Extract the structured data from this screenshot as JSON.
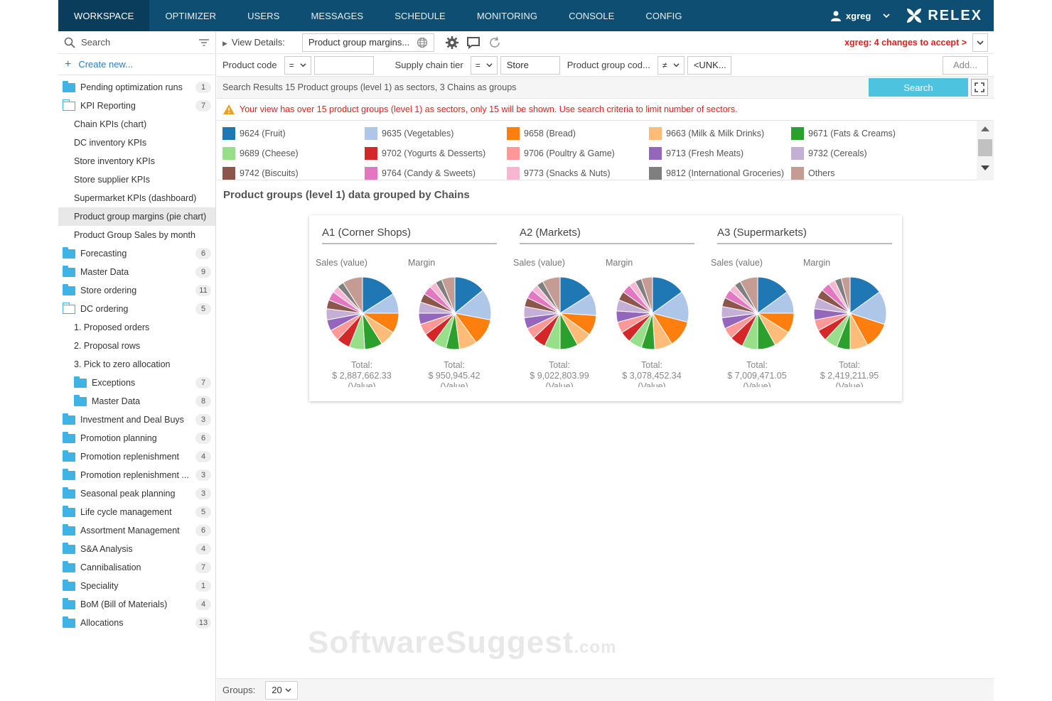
{
  "nav": {
    "tabs": [
      "WORKSPACE",
      "OPTIMIZER",
      "USERS",
      "MESSAGES",
      "SCHEDULE",
      "MONITORING",
      "CONSOLE",
      "CONFIG"
    ],
    "user": "xgreg",
    "logo": "RELEX"
  },
  "sidebar": {
    "search_label": "Search",
    "create_label": "Create new...",
    "items": [
      {
        "label": "Pending optimization runs",
        "count": "1",
        "icon": "folder",
        "level": 0
      },
      {
        "label": "KPI Reporting",
        "count": "7",
        "icon": "folder-open",
        "level": 0
      },
      {
        "label": "Chain KPIs (chart)",
        "count": "",
        "icon": "",
        "level": 1
      },
      {
        "label": "DC inventory KPIs",
        "count": "",
        "icon": "",
        "level": 1
      },
      {
        "label": "Store inventory KPIs",
        "count": "",
        "icon": "",
        "level": 1
      },
      {
        "label": "Store supplier KPIs",
        "count": "",
        "icon": "",
        "level": 1
      },
      {
        "label": "Supermarket KPIs (dashboard)",
        "count": "",
        "icon": "",
        "level": 1
      },
      {
        "label": "Product group margins (pie chart)",
        "count": "",
        "icon": "",
        "level": 1,
        "selected": true
      },
      {
        "label": "Product Group Sales by month",
        "count": "",
        "icon": "",
        "level": 1
      },
      {
        "label": "Forecasting",
        "count": "6",
        "icon": "folder",
        "level": 0
      },
      {
        "label": "Master Data",
        "count": "9",
        "icon": "folder",
        "level": 0
      },
      {
        "label": "Store ordering",
        "count": "11",
        "icon": "folder",
        "level": 0
      },
      {
        "label": "DC ordering",
        "count": "5",
        "icon": "folder-open",
        "level": 0
      },
      {
        "label": "1. Proposed orders",
        "count": "",
        "icon": "",
        "level": 1
      },
      {
        "label": "2. Proposal rows",
        "count": "",
        "icon": "",
        "level": 1
      },
      {
        "label": "3. Pick to zero allocation",
        "count": "",
        "icon": "",
        "level": 1
      },
      {
        "label": "Exceptions",
        "count": "7",
        "icon": "folder",
        "level": 1
      },
      {
        "label": "Master Data",
        "count": "8",
        "icon": "folder",
        "level": 1
      },
      {
        "label": "Investment and Deal Buys",
        "count": "3",
        "icon": "folder",
        "level": 0
      },
      {
        "label": "Promotion planning",
        "count": "6",
        "icon": "folder",
        "level": 0
      },
      {
        "label": "Promotion replenishment",
        "count": "4",
        "icon": "folder",
        "level": 0
      },
      {
        "label": "Promotion replenishment ...",
        "count": "3",
        "icon": "folder",
        "level": 0
      },
      {
        "label": "Seasonal peak planning",
        "count": "3",
        "icon": "folder",
        "level": 0
      },
      {
        "label": "Life cycle management",
        "count": "5",
        "icon": "folder",
        "level": 0
      },
      {
        "label": "Assortment Management",
        "count": "6",
        "icon": "folder",
        "level": 0
      },
      {
        "label": "S&A Analysis",
        "count": "4",
        "icon": "folder",
        "level": 0
      },
      {
        "label": "Cannibalisation",
        "count": "7",
        "icon": "folder",
        "level": 0
      },
      {
        "label": "Speciality",
        "count": "1",
        "icon": "folder",
        "level": 0
      },
      {
        "label": "BoM (Bill of Materials)",
        "count": "4",
        "icon": "folder",
        "level": 0
      },
      {
        "label": "Allocations",
        "count": "13",
        "icon": "folder",
        "level": 0
      }
    ]
  },
  "toolbar": {
    "view_details_label": "View Details:",
    "view_value": "Product group margins...",
    "changes_text": "xgreg: 4 changes to accept >"
  },
  "filters": {
    "product_code_label": "Product code",
    "product_code_op": "=",
    "product_code_value": "",
    "supply_chain_label": "Supply chain tier",
    "supply_chain_op": "=",
    "supply_chain_value": "Store",
    "product_group_label": "Product group cod...",
    "product_group_op": "≠",
    "product_group_value": "<UNK...",
    "add_label": "Add..."
  },
  "results": {
    "text": "Search Results  15 Product groups (level 1) as sectors, 3 Chains as groups",
    "search_button": "Search"
  },
  "warning": "Your view has over 15 product groups (level 1) as sectors, only 15 will be shown. Use search criteria to limit number of sectors.",
  "legend": [
    {
      "label": "9624 (Fruit)",
      "color": "#1f77b4"
    },
    {
      "label": "9635 (Vegetables)",
      "color": "#aec7e8"
    },
    {
      "label": "9658 (Bread)",
      "color": "#ff7f0e"
    },
    {
      "label": "9663 (Milk & Milk Drinks)",
      "color": "#ffbb78"
    },
    {
      "label": "9671 (Fats & Creams)",
      "color": "#2ca02c"
    },
    {
      "label": "9689 (Cheese)",
      "color": "#98df8a"
    },
    {
      "label": "9702 (Yogurts & Desserts)",
      "color": "#d62728"
    },
    {
      "label": "9706 (Poultry & Game)",
      "color": "#ff9896"
    },
    {
      "label": "9713 (Fresh Meats)",
      "color": "#9467bd"
    },
    {
      "label": "9732 (Cereals)",
      "color": "#c5b0d5"
    },
    {
      "label": "9742 (Biscuits)",
      "color": "#8c564b"
    },
    {
      "label": "9764 (Candy & Sweets)",
      "color": "#e377c2"
    },
    {
      "label": "9773 (Snacks & Nuts)",
      "color": "#f7b6d2"
    },
    {
      "label": "9812 (International Groceries)",
      "color": "#7f7f7f"
    },
    {
      "label": "Others",
      "color": "#c49c94"
    }
  ],
  "section_title": "Product groups (level 1) data grouped by Chains",
  "chart_data": {
    "type": "pie",
    "groups": [
      {
        "title": "A1 (Corner Shops)",
        "pies": [
          {
            "label": "Sales (value)",
            "total_label": "Total:",
            "total": "$ 2,887,662.33",
            "unit": "(Value)",
            "values": [
              16,
              9,
              9,
              7,
              8,
              7,
              6,
              5,
              5,
              5,
              4,
              4,
              3,
              3,
              9
            ]
          },
          {
            "label": "Margin",
            "total_label": "Total:",
            "total": "$ 950,945.42",
            "unit": "(Value)",
            "values": [
              14,
              14,
              12,
              8,
              6,
              6,
              5,
              5,
              5,
              5,
              4,
              4,
              3,
              3,
              6
            ]
          }
        ]
      },
      {
        "title": "A2 (Markets)",
        "pies": [
          {
            "label": "Sales (value)",
            "total_label": "Total:",
            "total": "$ 9,022,803.99",
            "unit": "(Value)",
            "values": [
              16,
              10,
              9,
              7,
              8,
              7,
              6,
              5,
              5,
              5,
              4,
              4,
              3,
              3,
              8
            ]
          },
          {
            "label": "Margin",
            "total_label": "Total:",
            "total": "$ 3,078,452.34",
            "unit": "(Value)",
            "values": [
              15,
              14,
              12,
              8,
              6,
              6,
              5,
              5,
              5,
              5,
              4,
              4,
              3,
              3,
              5
            ]
          }
        ]
      },
      {
        "title": "A3 (Supermarkets)",
        "pies": [
          {
            "label": "Sales (value)",
            "total_label": "Total:",
            "total": "$ 7,009,471.05",
            "unit": "(Value)",
            "values": [
              15,
              10,
              9,
              8,
              8,
              7,
              6,
              5,
              5,
              5,
              4,
              4,
              3,
              3,
              8
            ]
          },
          {
            "label": "Margin",
            "total_label": "Total:",
            "total": "$ 2,419,211.95",
            "unit": "(Value)",
            "values": [
              15,
              15,
              12,
              8,
              6,
              6,
              5,
              5,
              5,
              5,
              4,
              4,
              3,
              3,
              4
            ]
          }
        ]
      }
    ]
  },
  "footer": {
    "groups_label": "Groups:",
    "groups_value": "20"
  },
  "watermark": {
    "main": "SoftwareSuggest",
    "suffix": ".com"
  }
}
